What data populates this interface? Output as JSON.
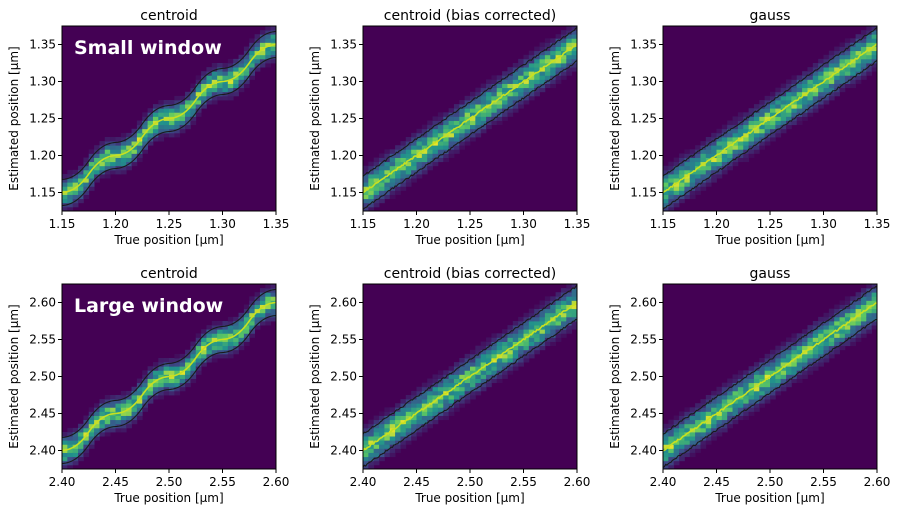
{
  "chart_data": [
    {
      "type": "heatmap",
      "row": 0,
      "col": 0,
      "title": "centroid",
      "xlabel": "True position [μm]",
      "ylabel": "Estimated position [μm]",
      "xlim": [
        1.15,
        1.35
      ],
      "ylim": [
        1.125,
        1.375
      ],
      "xticks": [
        "1.15",
        "1.20",
        "1.25",
        "1.30",
        "1.35"
      ],
      "yticks": [
        "1.15",
        "1.20",
        "1.25",
        "1.30",
        "1.35"
      ],
      "method": "centroid",
      "step": 0.05,
      "annotation": "Small window",
      "colormap": "viridis",
      "fit_line_color": "#c8e020",
      "contour_color": "#1a1a1a"
    },
    {
      "type": "heatmap",
      "row": 0,
      "col": 1,
      "title": "centroid (bias corrected)",
      "xlabel": "True position [μm]",
      "ylabel": "Estimated position [μm]",
      "xlim": [
        1.15,
        1.35
      ],
      "ylim": [
        1.125,
        1.375
      ],
      "xticks": [
        "1.15",
        "1.20",
        "1.25",
        "1.30",
        "1.35"
      ],
      "yticks": [
        "1.15",
        "1.20",
        "1.25",
        "1.30",
        "1.35"
      ],
      "method": "corrected",
      "step": 0.05,
      "annotation": "",
      "colormap": "viridis",
      "fit_line_color": "#c8e020",
      "contour_color": "#1a1a1a"
    },
    {
      "type": "heatmap",
      "row": 0,
      "col": 2,
      "title": "gauss",
      "xlabel": "True position [μm]",
      "ylabel": "Estimated position [μm]",
      "xlim": [
        1.15,
        1.35
      ],
      "ylim": [
        1.125,
        1.375
      ],
      "xticks": [
        "1.15",
        "1.20",
        "1.25",
        "1.30",
        "1.35"
      ],
      "yticks": [
        "1.15",
        "1.20",
        "1.25",
        "1.30",
        "1.35"
      ],
      "method": "gauss",
      "step": 0.05,
      "annotation": "",
      "colormap": "viridis",
      "fit_line_color": "#c8e020",
      "contour_color": "#1a1a1a"
    },
    {
      "type": "heatmap",
      "row": 1,
      "col": 0,
      "title": "centroid",
      "xlabel": "True position [μm]",
      "ylabel": "Estimated position [μm]",
      "xlim": [
        2.4,
        2.6
      ],
      "ylim": [
        2.375,
        2.625
      ],
      "xticks": [
        "2.40",
        "2.45",
        "2.50",
        "2.55",
        "2.60"
      ],
      "yticks": [
        "2.40",
        "2.45",
        "2.50",
        "2.55",
        "2.60"
      ],
      "method": "centroid",
      "step": 0.05,
      "annotation": "Large window",
      "colormap": "viridis",
      "fit_line_color": "#c8e020",
      "contour_color": "#1a1a1a"
    },
    {
      "type": "heatmap",
      "row": 1,
      "col": 1,
      "title": "centroid (bias corrected)",
      "xlabel": "True position [μm]",
      "ylabel": "Estimated position [μm]",
      "xlim": [
        2.4,
        2.6
      ],
      "ylim": [
        2.375,
        2.625
      ],
      "xticks": [
        "2.40",
        "2.45",
        "2.50",
        "2.55",
        "2.60"
      ],
      "yticks": [
        "2.40",
        "2.45",
        "2.50",
        "2.55",
        "2.60"
      ],
      "method": "corrected",
      "step": 0.05,
      "annotation": "",
      "colormap": "viridis",
      "fit_line_color": "#c8e020",
      "contour_color": "#1a1a1a"
    },
    {
      "type": "heatmap",
      "row": 1,
      "col": 2,
      "title": "gauss",
      "xlabel": "True position [μm]",
      "ylabel": "Estimated position [μm]",
      "xlim": [
        2.4,
        2.6
      ],
      "ylim": [
        2.375,
        2.625
      ],
      "xticks": [
        "2.40",
        "2.45",
        "2.50",
        "2.55",
        "2.60"
      ],
      "yticks": [
        "2.40",
        "2.45",
        "2.50",
        "2.55",
        "2.60"
      ],
      "method": "gauss",
      "step": 0.05,
      "annotation": "",
      "colormap": "viridis",
      "fit_line_color": "#c8e020",
      "contour_color": "#1a1a1a"
    }
  ]
}
